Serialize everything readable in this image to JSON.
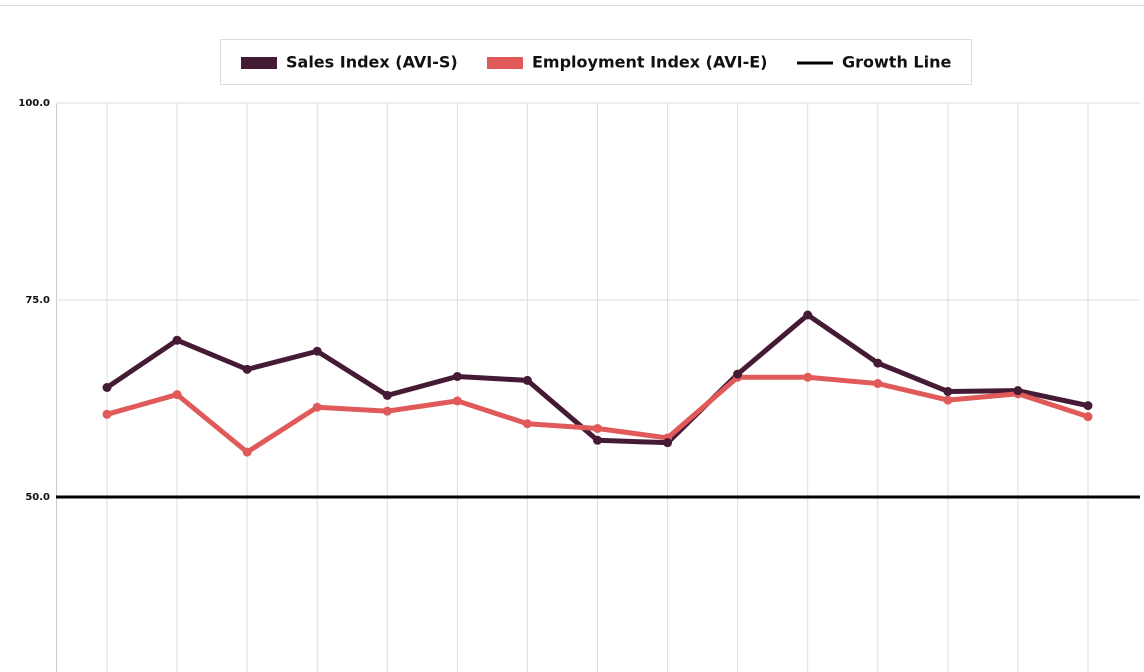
{
  "chart_data": {
    "type": "line",
    "categories": [
      null,
      null,
      null,
      null,
      null,
      null,
      null,
      null,
      null,
      null,
      null,
      null,
      null,
      null,
      null
    ],
    "series": [
      {
        "name": "Sales Index (AVI-S)",
        "color": "#451a35",
        "values": [
          63.9,
          69.9,
          66.2,
          68.5,
          62.9,
          65.3,
          64.8,
          57.2,
          56.9,
          65.6,
          73.1,
          67.0,
          63.4,
          63.5,
          61.6
        ]
      },
      {
        "name": "Employment Index (AVI-E)",
        "color": "#e05a5a",
        "values": [
          60.5,
          63.0,
          55.7,
          61.4,
          60.9,
          62.2,
          59.3,
          58.7,
          57.5,
          65.2,
          65.2,
          64.4,
          62.3,
          63.1,
          60.2
        ]
      }
    ],
    "reference_line": {
      "name": "Growth Line",
      "value": 50,
      "color": "#000000"
    },
    "ylim": [
      27.8,
      100
    ],
    "yticks": [
      {
        "value": 50,
        "label": "50.0"
      },
      {
        "value": 75,
        "label": "75.0"
      },
      {
        "value": 100,
        "label": "100.0"
      }
    ],
    "grid": true,
    "legend": "top"
  }
}
